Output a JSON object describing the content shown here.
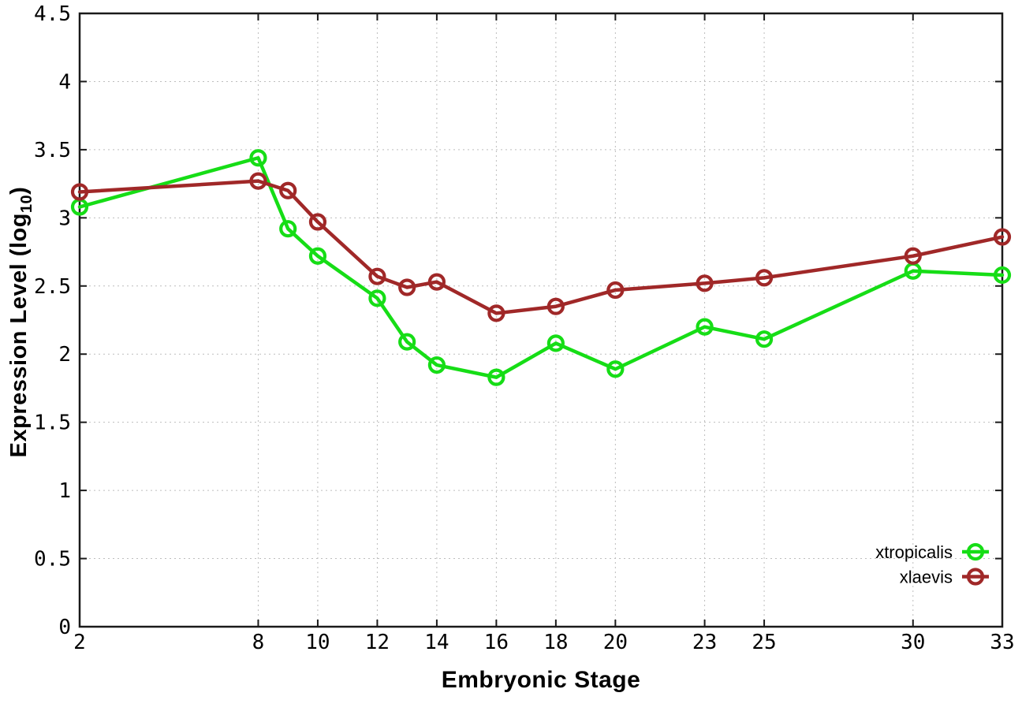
{
  "figure": {
    "xlabel": "Embryonic Stage",
    "ylabel_prefix": "Expression Level (log",
    "ylabel_sub": "10",
    "ylabel_suffix": ")"
  },
  "chart_data": {
    "type": "line",
    "title": "",
    "xlabel": "Embryonic Stage",
    "ylabel": "Expression Level (log10)",
    "x": [
      2,
      8,
      9,
      10,
      12,
      13,
      14,
      16,
      18,
      20,
      23,
      25,
      30,
      33
    ],
    "series": [
      {
        "name": "xtropicalis",
        "color": "#16dd16",
        "marker": "open-circle",
        "values": [
          3.08,
          3.44,
          2.92,
          2.72,
          2.41,
          2.09,
          1.92,
          1.83,
          2.08,
          1.89,
          2.2,
          2.11,
          2.61,
          2.58
        ]
      },
      {
        "name": "xlaevis",
        "color": "#a02828",
        "marker": "open-circle",
        "values": [
          3.19,
          3.27,
          3.2,
          2.97,
          2.57,
          2.49,
          2.53,
          2.3,
          2.35,
          2.47,
          2.52,
          2.56,
          2.72,
          2.86
        ]
      }
    ],
    "xlim": [
      2,
      33
    ],
    "ylim": [
      0,
      4.5
    ],
    "xticks": [
      2,
      8,
      10,
      12,
      14,
      16,
      18,
      20,
      23,
      25,
      30,
      33
    ],
    "xtick_labels": [
      "2",
      "8",
      "10",
      "12",
      "14",
      "16",
      "18",
      "20",
      "23",
      "25",
      "30",
      "33"
    ],
    "yticks": [
      0,
      0.5,
      1,
      1.5,
      2,
      2.5,
      3,
      3.5,
      4,
      4.5
    ],
    "ytick_labels": [
      "0",
      "0.5",
      "1",
      "1.5",
      "2",
      "2.5",
      "3",
      "3.5",
      "4",
      "4.5"
    ],
    "grid": true,
    "grid_color": "#bdbdbd",
    "border_color": "#1a1a1a",
    "legend_position": "bottom-right"
  }
}
